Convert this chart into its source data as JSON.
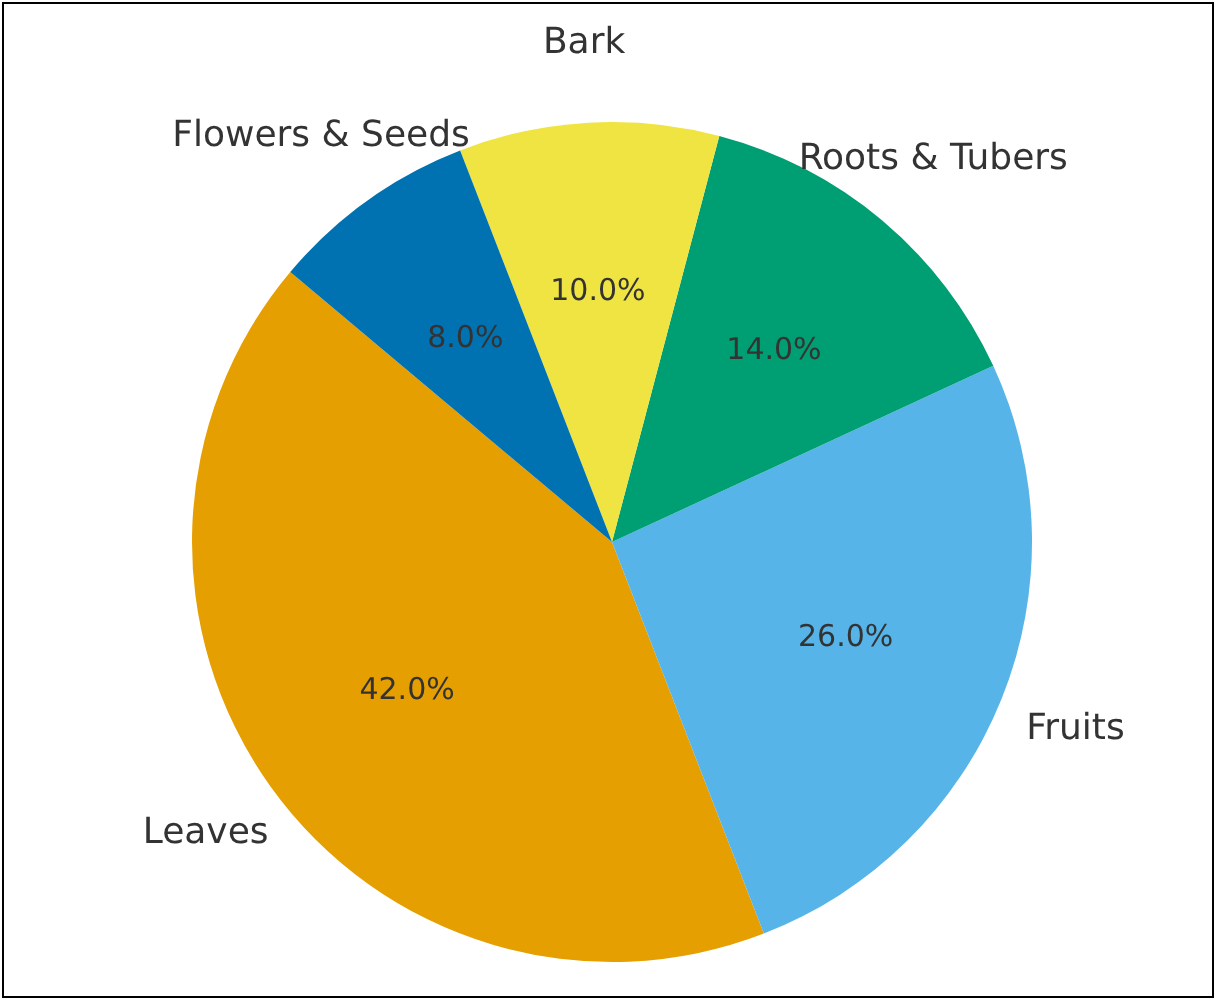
{
  "chart_data": {
    "type": "pie",
    "categories": [
      "Leaves",
      "Fruits",
      "Roots & Tubers",
      "Bark",
      "Flowers & Seeds"
    ],
    "values": [
      42,
      26,
      14,
      10,
      8
    ],
    "colors": [
      "#e69f00",
      "#56b4e9",
      "#009e73",
      "#f0e442",
      "#0072b2"
    ],
    "value_labels": [
      "42.0%",
      "26.0%",
      "14.0%",
      "10.0%",
      "8.0%"
    ]
  }
}
